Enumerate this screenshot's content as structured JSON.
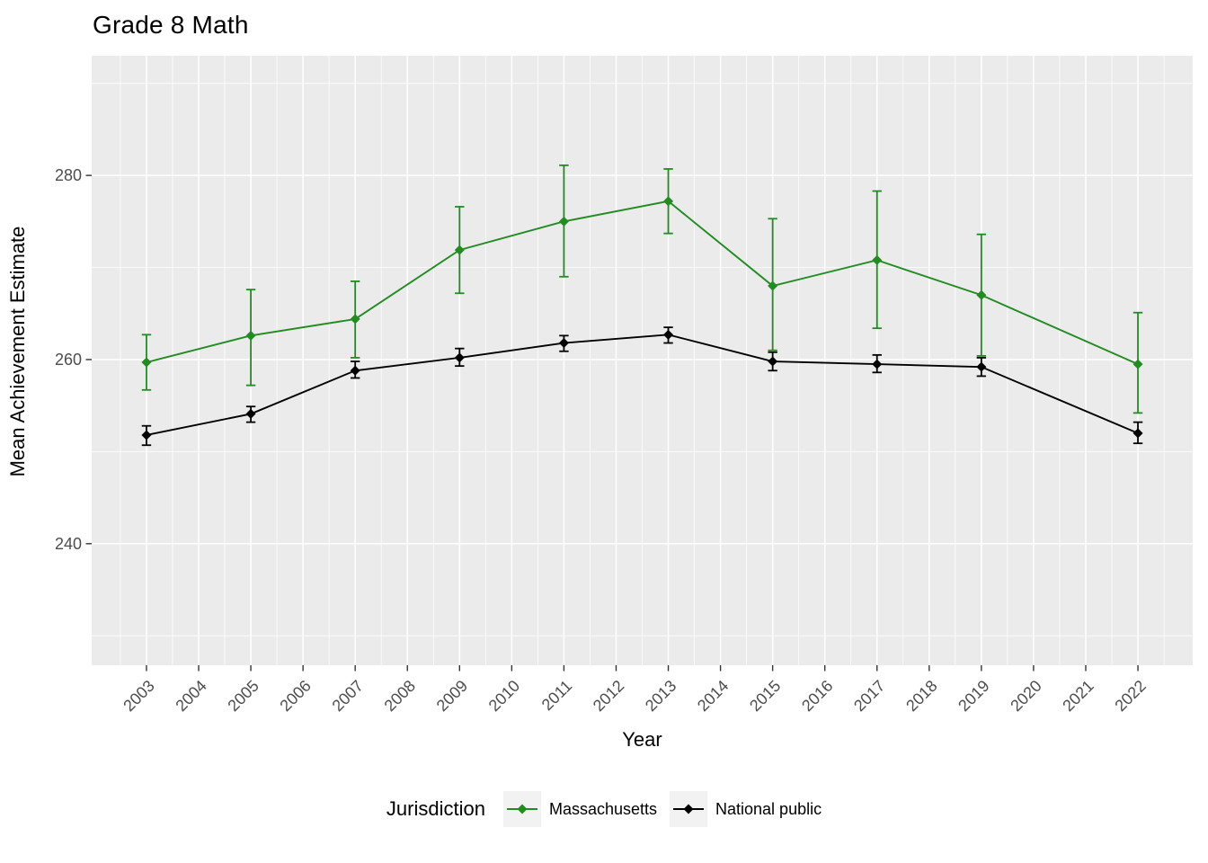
{
  "title": "Grade 8 Math",
  "colors": {
    "panel_background": "#EBEBEB",
    "gridline": "#FFFFFF",
    "tick_mark": "#333333",
    "tick_label": "#4D4D4D",
    "legend_key_background": "#F2F2F2",
    "massachusetts_green": "#228B22",
    "national_black": "#000000"
  },
  "legend": {
    "title": "Jurisdiction"
  },
  "chart_data": {
    "type": "line",
    "title": "Grade 8 Math",
    "xlabel": "Year",
    "ylabel": "Mean Achievement Estimate",
    "grid": true,
    "legend_position": "bottom",
    "legend_title": "Jurisdiction",
    "xlim": [
      2001.95,
      2023.05
    ],
    "ylim": [
      226.8,
      293.0
    ],
    "x_tick_labels": [
      "2003",
      "2004",
      "2005",
      "2006",
      "2007",
      "2008",
      "2009",
      "2010",
      "2011",
      "2012",
      "2013",
      "2014",
      "2015",
      "2016",
      "2017",
      "2018",
      "2019",
      "2020",
      "2021",
      "2022"
    ],
    "x_ticks": [
      2003,
      2004,
      2005,
      2006,
      2007,
      2008,
      2009,
      2010,
      2011,
      2012,
      2013,
      2014,
      2015,
      2016,
      2017,
      2018,
      2019,
      2020,
      2021,
      2022
    ],
    "x_minor_ticks": [
      2002.5,
      2003.5,
      2004.5,
      2005.5,
      2006.5,
      2007.5,
      2008.5,
      2009.5,
      2010.5,
      2011.5,
      2012.5,
      2013.5,
      2014.5,
      2015.5,
      2016.5,
      2017.5,
      2018.5,
      2019.5,
      2020.5,
      2021.5,
      2022.5
    ],
    "y_ticks": [
      240,
      260,
      280
    ],
    "y_tick_labels": [
      "240",
      "260",
      "280"
    ],
    "y_minor_ticks": [
      230,
      250,
      270,
      290
    ],
    "x": [
      2003,
      2005,
      2007,
      2009,
      2011,
      2013,
      2015,
      2017,
      2019,
      2022
    ],
    "series": [
      {
        "name": "Massachusetts",
        "color": "#228B22",
        "marker": "diamond",
        "values": [
          259.7,
          262.6,
          264.4,
          271.9,
          275.0,
          277.2,
          268.0,
          270.8,
          267.0,
          259.5
        ],
        "ci_low": [
          256.7,
          257.2,
          260.2,
          267.2,
          269.0,
          273.7,
          261.0,
          263.4,
          260.4,
          254.2
        ],
        "ci_high": [
          262.7,
          267.6,
          268.5,
          276.6,
          281.1,
          280.7,
          275.3,
          278.3,
          273.6,
          265.1
        ]
      },
      {
        "name": "National public",
        "color": "#000000",
        "marker": "diamond",
        "values": [
          251.8,
          254.1,
          258.8,
          260.2,
          261.8,
          262.7,
          259.8,
          259.5,
          259.2,
          252.0
        ],
        "ci_low": [
          250.7,
          253.2,
          258.0,
          259.3,
          260.9,
          261.8,
          258.8,
          258.6,
          258.2,
          250.9
        ],
        "ci_high": [
          252.8,
          254.9,
          259.8,
          261.2,
          262.6,
          263.5,
          260.8,
          260.5,
          260.2,
          253.2
        ]
      }
    ]
  }
}
